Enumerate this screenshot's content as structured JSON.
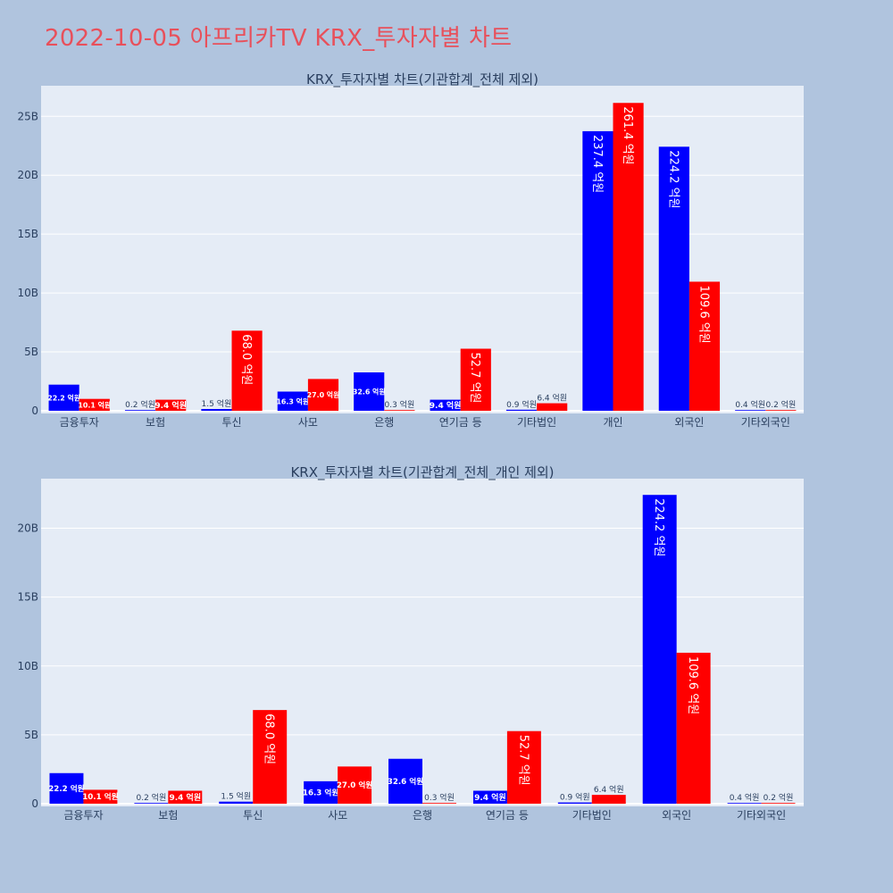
{
  "page": {
    "title": "2022-10-05 아프리카TV KRX_투자자별 차트"
  },
  "colors": {
    "background": "#b0c4de",
    "plot_bg": "#e5ecf6",
    "buy": "#0000ff",
    "sell": "#ff0000",
    "title": "#e8505b",
    "text": "#2a3f5f"
  },
  "chart_data": [
    {
      "type": "bar",
      "title": "KRX_투자자별 차트(기관합계_전체 제외)",
      "categories": [
        "금융투자",
        "보험",
        "투신",
        "사모",
        "은행",
        "연기금 등",
        "기타법인",
        "개인",
        "외국인",
        "기타외국인"
      ],
      "series": [
        {
          "name": "buy",
          "color": "#0000ff",
          "values": [
            2.22,
            0.02,
            0.15,
            1.63,
            3.26,
            0.94,
            0.09,
            23.74,
            22.42,
            0.04
          ],
          "labels": [
            "22.2 억원",
            "0.2 억원",
            "1.5 억원",
            "16.3 억원",
            "32.6 억원",
            "9.4 억원",
            "0.9 억원",
            "237.4 억원",
            "224.2 억원",
            "0.4 억원"
          ]
        },
        {
          "name": "sell",
          "color": "#ff0000",
          "values": [
            1.01,
            0.94,
            6.8,
            2.7,
            0.03,
            5.27,
            0.64,
            26.14,
            10.96,
            0.02
          ],
          "labels": [
            "10.1 억원",
            "9.4 억원",
            "68.0 억원",
            "27.0 억원",
            "0.3 억원",
            "52.7 억원",
            "6.4 억원",
            "261.4 억원",
            "109.6 억원",
            "0.2 억원"
          ]
        }
      ],
      "ylim": [
        0,
        27.6
      ],
      "yticks": [
        0,
        5,
        10,
        15,
        20,
        25
      ],
      "ytick_labels": [
        "0",
        "5B",
        "10B",
        "15B",
        "20B",
        "25B"
      ]
    },
    {
      "type": "bar",
      "title": "KRX_투자자별 차트(기관합계_전체_개인 제외)",
      "categories": [
        "금융투자",
        "보험",
        "투신",
        "사모",
        "은행",
        "연기금 등",
        "기타법인",
        "외국인",
        "기타외국인"
      ],
      "series": [
        {
          "name": "buy",
          "color": "#0000ff",
          "values": [
            2.22,
            0.02,
            0.15,
            1.63,
            3.26,
            0.94,
            0.09,
            22.42,
            0.04
          ],
          "labels": [
            "22.2 억원",
            "0.2 억원",
            "1.5 억원",
            "16.3 억원",
            "32.6 억원",
            "9.4 억원",
            "0.9 억원",
            "224.2 억원",
            "0.4 억원"
          ]
        },
        {
          "name": "sell",
          "color": "#ff0000",
          "values": [
            1.01,
            0.94,
            6.8,
            2.7,
            0.03,
            5.27,
            0.64,
            10.96,
            0.02
          ],
          "labels": [
            "10.1 억원",
            "9.4 억원",
            "68.0 억원",
            "27.0 억원",
            "0.3 억원",
            "52.7 억원",
            "6.4 억원",
            "109.6 억원",
            "0.2 억원"
          ]
        }
      ],
      "ylim": [
        0,
        23.6
      ],
      "yticks": [
        0,
        5,
        10,
        15,
        20
      ],
      "ytick_labels": [
        "0",
        "5B",
        "10B",
        "15B",
        "20B"
      ]
    }
  ]
}
